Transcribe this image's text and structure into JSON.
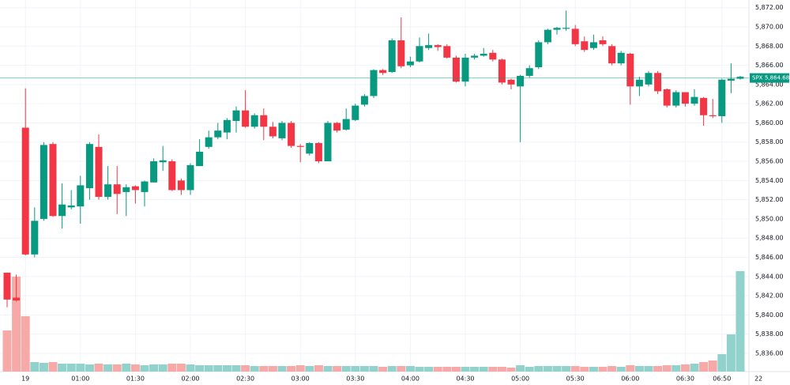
{
  "chart_data": {
    "type": "candlestick",
    "symbol": "SPX",
    "x": [
      "00:20",
      "00:25",
      "00:30",
      "00:35",
      "00:40",
      "00:45",
      "00:50",
      "00:55",
      "01:00",
      "01:05",
      "01:10",
      "01:15",
      "01:20",
      "01:25",
      "01:30",
      "01:35",
      "01:40",
      "01:45",
      "01:50",
      "01:55",
      "02:00",
      "02:05",
      "02:10",
      "02:15",
      "02:20",
      "02:25",
      "02:30",
      "02:35",
      "02:40",
      "02:45",
      "02:50",
      "02:55",
      "03:00",
      "03:05",
      "03:10",
      "03:15",
      "03:20",
      "03:25",
      "03:30",
      "03:35",
      "03:40",
      "03:45",
      "03:50",
      "03:55",
      "04:00",
      "04:05",
      "04:10",
      "04:15",
      "04:20",
      "04:25",
      "04:30",
      "04:35",
      "04:40",
      "04:45",
      "04:50",
      "04:55",
      "05:00",
      "05:05",
      "05:10",
      "05:15",
      "05:20",
      "05:25",
      "05:30",
      "05:35",
      "05:40",
      "05:45",
      "05:50",
      "05:55",
      "06:00",
      "06:05",
      "06:10",
      "06:15",
      "06:20",
      "06:25",
      "06:30",
      "06:35",
      "06:40",
      "06:45",
      "06:50",
      "06:55",
      "07:00"
    ],
    "open": [
      5844.4,
      5841.8,
      5859.5,
      5846.3,
      5850.0,
      5857.8,
      5850.3,
      5851.2,
      5851.3,
      5853.2,
      5857.5,
      5852.3,
      5853.6,
      5852.8,
      5853.4,
      5852.8,
      5853.8,
      5855.9,
      5856.0,
      5854.0,
      5853.0,
      5855.5,
      5857.5,
      5858.5,
      5859.0,
      5860.2,
      5861.3,
      5859.6,
      5860.8,
      5859.6,
      5858.4,
      5860.0,
      5857.6,
      5856.8,
      5857.9,
      5856.0,
      5860.0,
      5859.3,
      5860.3,
      5861.9,
      5862.8,
      5865.5,
      5865.3,
      5868.6,
      5866.0,
      5866.4,
      5867.8,
      5868.1,
      5868.0,
      5866.8,
      5864.3,
      5866.8,
      5867.0,
      5867.3,
      5866.6,
      5864.5,
      5863.8,
      5864.9,
      5865.8,
      5868.4,
      5869.7,
      5869.8,
      5869.8,
      5868.5,
      5867.8,
      5868.6,
      5868.0,
      5866.2,
      5867.2,
      5863.8,
      5864.0,
      5865.2,
      5863.5,
      5861.8,
      5863.2,
      5862.0,
      5862.6,
      5860.8,
      5860.7,
      5864.4,
      5864.6
    ],
    "high": [
      5844.4,
      5844.2,
      5863.6,
      5851.2,
      5858.0,
      5858.0,
      5853.7,
      5853.0,
      5854.5,
      5858.0,
      5858.8,
      5855.5,
      5855.5,
      5853.6,
      5853.5,
      5854.0,
      5856.3,
      5857.6,
      5856.2,
      5854.2,
      5855.8,
      5858.3,
      5859.2,
      5860.0,
      5860.5,
      5861.7,
      5863.4,
      5861.0,
      5861.5,
      5860.1,
      5860.2,
      5860.2,
      5857.8,
      5858.0,
      5858.0,
      5860.2,
      5860.1,
      5861.5,
      5862.0,
      5863.0,
      5865.6,
      5865.6,
      5868.8,
      5871.0,
      5866.9,
      5868.9,
      5869.3,
      5868.2,
      5868.2,
      5867.0,
      5867.2,
      5867.2,
      5867.8,
      5867.6,
      5866.7,
      5864.6,
      5865.0,
      5866.0,
      5868.6,
      5869.8,
      5870.0,
      5871.7,
      5870.2,
      5869.0,
      5869.2,
      5869.0,
      5868.2,
      5867.5,
      5867.3,
      5864.8,
      5865.4,
      5865.4,
      5863.6,
      5863.4,
      5863.2,
      5863.5,
      5862.7,
      5862.5,
      5864.6,
      5866.2,
      5864.9
    ],
    "low": [
      5840.8,
      5841.4,
      5846.2,
      5846.0,
      5849.8,
      5850.2,
      5849.0,
      5851.0,
      5849.5,
      5852.0,
      5852.0,
      5852.0,
      5850.5,
      5850.3,
      5851.6,
      5851.3,
      5853.8,
      5855.0,
      5852.9,
      5852.5,
      5852.5,
      5855.5,
      5857.3,
      5858.3,
      5858.3,
      5859.0,
      5859.5,
      5859.4,
      5858.2,
      5858.4,
      5858.2,
      5857.4,
      5855.9,
      5856.6,
      5855.8,
      5856.0,
      5859.0,
      5859.2,
      5860.2,
      5861.7,
      5862.6,
      5865.0,
      5865.2,
      5865.7,
      5865.8,
      5866.3,
      5867.6,
      5867.5,
      5866.7,
      5864.2,
      5863.8,
      5866.6,
      5866.9,
      5866.4,
      5864.0,
      5863.5,
      5858.0,
      5864.7,
      5865.6,
      5868.2,
      5869.2,
      5869.6,
      5868.0,
      5867.4,
      5867.6,
      5868.0,
      5866.0,
      5866.0,
      5861.9,
      5862.8,
      5863.8,
      5863.0,
      5861.6,
      5861.6,
      5861.7,
      5861.8,
      5859.7,
      5860.5,
      5860.0,
      5863.1,
      5864.5
    ],
    "close": [
      5841.6,
      5841.5,
      5846.3,
      5849.8,
      5857.7,
      5850.3,
      5851.5,
      5851.4,
      5853.5,
      5857.8,
      5852.3,
      5853.6,
      5852.6,
      5853.3,
      5853.0,
      5853.9,
      5856.0,
      5856.1,
      5853.0,
      5853.0,
      5855.6,
      5857.0,
      5858.5,
      5859.2,
      5860.3,
      5861.3,
      5859.6,
      5860.8,
      5859.6,
      5858.6,
      5860.0,
      5857.6,
      5857.5,
      5857.9,
      5856.0,
      5860.0,
      5859.2,
      5860.4,
      5861.8,
      5862.8,
      5865.5,
      5865.2,
      5868.6,
      5865.9,
      5866.4,
      5868.0,
      5868.1,
      5867.9,
      5866.8,
      5864.3,
      5866.8,
      5867.0,
      5867.2,
      5866.6,
      5864.2,
      5864.0,
      5864.9,
      5865.7,
      5868.4,
      5869.7,
      5869.9,
      5869.9,
      5868.2,
      5867.6,
      5868.4,
      5868.2,
      5866.2,
      5867.3,
      5863.8,
      5864.5,
      5865.2,
      5863.3,
      5861.8,
      5863.2,
      5862.0,
      5862.7,
      5860.8,
      5860.7,
      5864.5,
      5864.6,
      5864.8
    ],
    "volume": [
      52,
      120,
      70,
      12,
      11,
      12,
      10,
      10,
      10,
      9,
      10,
      9,
      9,
      10,
      9,
      8,
      9,
      9,
      10,
      10,
      9,
      8,
      8,
      8,
      8,
      8,
      8,
      7,
      7,
      7,
      7,
      7,
      8,
      7,
      8,
      7,
      7,
      7,
      7,
      7,
      7,
      6,
      7,
      7,
      7,
      6,
      6,
      6,
      6,
      6,
      6,
      6,
      6,
      6,
      6,
      5,
      8,
      6,
      7,
      7,
      7,
      7,
      7,
      6,
      6,
      6,
      7,
      6,
      8,
      7,
      7,
      7,
      8,
      8,
      9,
      10,
      12,
      14,
      22,
      47,
      127
    ],
    "up_color": "#089981",
    "down_color": "#f23645",
    "volume_up_color": "#92d2cc",
    "volume_down_color": "#f7a9a7",
    "last_price": {
      "value": 5864.68,
      "label": "5,864.68"
    },
    "ylim": [
      5834.1,
      5872.8
    ],
    "yticks": [
      {
        "value": 5836,
        "label": "5,836.00"
      },
      {
        "value": 5838,
        "label": "5,838.00"
      },
      {
        "value": 5840,
        "label": "5,840.00"
      },
      {
        "value": 5842,
        "label": "5,842.00"
      },
      {
        "value": 5844,
        "label": "5,844.00"
      },
      {
        "value": 5846,
        "label": "5,846.00"
      },
      {
        "value": 5848,
        "label": "5,848.00"
      },
      {
        "value": 5850,
        "label": "5,850.00"
      },
      {
        "value": 5852,
        "label": "5,852.00"
      },
      {
        "value": 5854,
        "label": "5,854.00"
      },
      {
        "value": 5856,
        "label": "5,856.00"
      },
      {
        "value": 5858,
        "label": "5,858.00"
      },
      {
        "value": 5860,
        "label": "5,860.00"
      },
      {
        "value": 5862,
        "label": "5,862.00"
      },
      {
        "value": 5864,
        "label": "5,864.00"
      },
      {
        "value": 5866,
        "label": "5,866.00"
      },
      {
        "value": 5868,
        "label": "5,868.00"
      },
      {
        "value": 5870,
        "label": "5,870.00"
      },
      {
        "value": 5872,
        "label": "5,872.00"
      }
    ],
    "xticks": [
      {
        "value": "00:30",
        "label": "19"
      },
      "01:00",
      "01:30",
      "02:00",
      "02:30",
      "03:00",
      "03:30",
      "04:00",
      "04:30",
      "05:00",
      "05:30",
      "06:00",
      "06:30",
      "06:50",
      {
        "value": "07:10",
        "label": "22"
      }
    ],
    "grid": true
  }
}
